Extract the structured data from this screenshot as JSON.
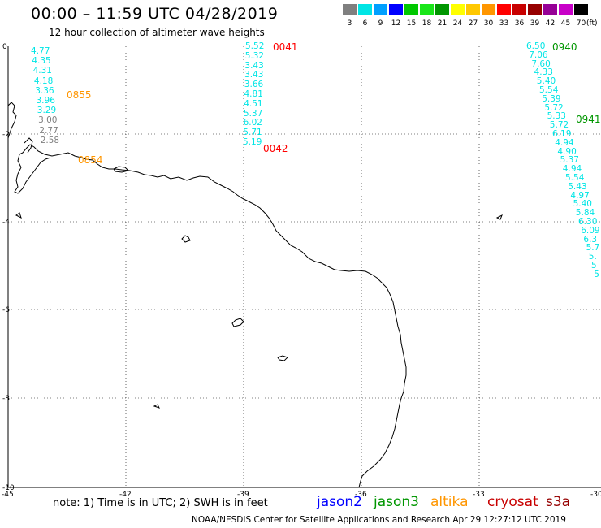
{
  "header": {
    "title": "00:00 – 11:59 UTC 04/28/2019",
    "subtitle": "12 hour collection of altimeter wave heights"
  },
  "legend": {
    "labels": [
      "3",
      "6",
      "9",
      "12",
      "15",
      "18",
      "21",
      "24",
      "27",
      "30",
      "33",
      "36",
      "39",
      "42",
      "45",
      "70"
    ],
    "colors": [
      "#7f7f7f",
      "#00e5e5",
      "#00a0ff",
      "#0000ff",
      "#00c800",
      "#19e619",
      "#009600",
      "#ffff00",
      "#ffc800",
      "#ff9600",
      "#ff0000",
      "#c80000",
      "#960000",
      "#960096",
      "#c800c8",
      "#000000"
    ],
    "unit": "(ft)"
  },
  "axes": {
    "lat_labels": [
      "0",
      "-2",
      "-4",
      "-6",
      "-8",
      "-10"
    ],
    "lon_labels": [
      "-45",
      "-42",
      "-39",
      "-36",
      "-33",
      "-30"
    ]
  },
  "tracks": [
    {
      "time": "0855",
      "time_color": "#ff9600",
      "values": [
        {
          "v": "4.77",
          "c": "#00e5e5"
        },
        {
          "v": "4.35",
          "c": "#00e5e5"
        },
        {
          "v": "4.31",
          "c": "#00e5e5"
        },
        {
          "v": "4.18",
          "c": "#00e5e5"
        },
        {
          "v": "3.36",
          "c": "#00e5e5"
        },
        {
          "v": "3.96",
          "c": "#00e5e5"
        },
        {
          "v": "3.29",
          "c": "#00e5e5"
        },
        {
          "v": "3.00",
          "c": "#7f7f7f"
        },
        {
          "v": "2.77",
          "c": "#7f7f7f"
        },
        {
          "v": "2.58",
          "c": "#7f7f7f"
        }
      ]
    },
    {
      "time": "0854",
      "time_color": "#ff9600",
      "values": []
    },
    {
      "time": "0041",
      "time_color": "#ff0000",
      "values": [
        {
          "v": "5.52",
          "c": "#00e5e5"
        },
        {
          "v": "5.32",
          "c": "#00e5e5"
        },
        {
          "v": "3.43",
          "c": "#00e5e5"
        },
        {
          "v": "3.43",
          "c": "#00e5e5"
        },
        {
          "v": "3.66",
          "c": "#00e5e5"
        },
        {
          "v": "4.81",
          "c": "#00e5e5"
        },
        {
          "v": "4.51",
          "c": "#00e5e5"
        },
        {
          "v": "5.37",
          "c": "#00e5e5"
        },
        {
          "v": "6.02",
          "c": "#00e5e5"
        },
        {
          "v": "5.71",
          "c": "#00e5e5"
        },
        {
          "v": "5.19",
          "c": "#00e5e5"
        }
      ]
    },
    {
      "time": "0042",
      "time_color": "#ff0000",
      "values": []
    },
    {
      "time": "0940",
      "time_color": "#009600",
      "values": [
        {
          "v": "6.50",
          "c": "#00e5e5"
        },
        {
          "v": "7.06",
          "c": "#00e5e5"
        },
        {
          "v": "7.60",
          "c": "#00e5e5"
        },
        {
          "v": "4.33",
          "c": "#00e5e5"
        },
        {
          "v": "5.40",
          "c": "#00e5e5"
        },
        {
          "v": "5.54",
          "c": "#00e5e5"
        },
        {
          "v": "5.39",
          "c": "#00e5e5"
        },
        {
          "v": "5.72",
          "c": "#00e5e5"
        },
        {
          "v": "5.33",
          "c": "#00e5e5"
        },
        {
          "v": "5.72",
          "c": "#00e5e5"
        },
        {
          "v": "6.19",
          "c": "#00e5e5"
        },
        {
          "v": "4.94",
          "c": "#00e5e5"
        },
        {
          "v": "4.90",
          "c": "#00e5e5"
        },
        {
          "v": "5.37",
          "c": "#00e5e5"
        },
        {
          "v": "4.94",
          "c": "#00e5e5"
        },
        {
          "v": "5.54",
          "c": "#00e5e5"
        },
        {
          "v": "5.43",
          "c": "#00e5e5"
        },
        {
          "v": "4.97",
          "c": "#00e5e5"
        },
        {
          "v": "5.40",
          "c": "#00e5e5"
        },
        {
          "v": "5.84",
          "c": "#00e5e5"
        },
        {
          "v": "6.30",
          "c": "#00e5e5"
        },
        {
          "v": "6.09",
          "c": "#00e5e5"
        },
        {
          "v": "6.3",
          "c": "#00e5e5"
        },
        {
          "v": "5.7",
          "c": "#00e5e5"
        },
        {
          "v": "5.",
          "c": "#00e5e5"
        },
        {
          "v": "5",
          "c": "#00e5e5"
        },
        {
          "v": "5",
          "c": "#00e5e5"
        }
      ]
    },
    {
      "time": "0941",
      "time_color": "#009600",
      "values": []
    }
  ],
  "footer": {
    "note": "note: 1) Time is in UTC; 2) SWH is in feet",
    "credit": "NOAA/NESDIS Center for Satellite Applications and Research    Apr 29 12:27:12 UTC 2019",
    "satellites": [
      {
        "name": "jason2",
        "color": "#0000ff"
      },
      {
        "name": "jason3",
        "color": "#009600"
      },
      {
        "name": "altika",
        "color": "#ff9600"
      },
      {
        "name": "cryosat",
        "color": "#c80000"
      },
      {
        "name": "s3a",
        "color": "#960000"
      }
    ]
  }
}
